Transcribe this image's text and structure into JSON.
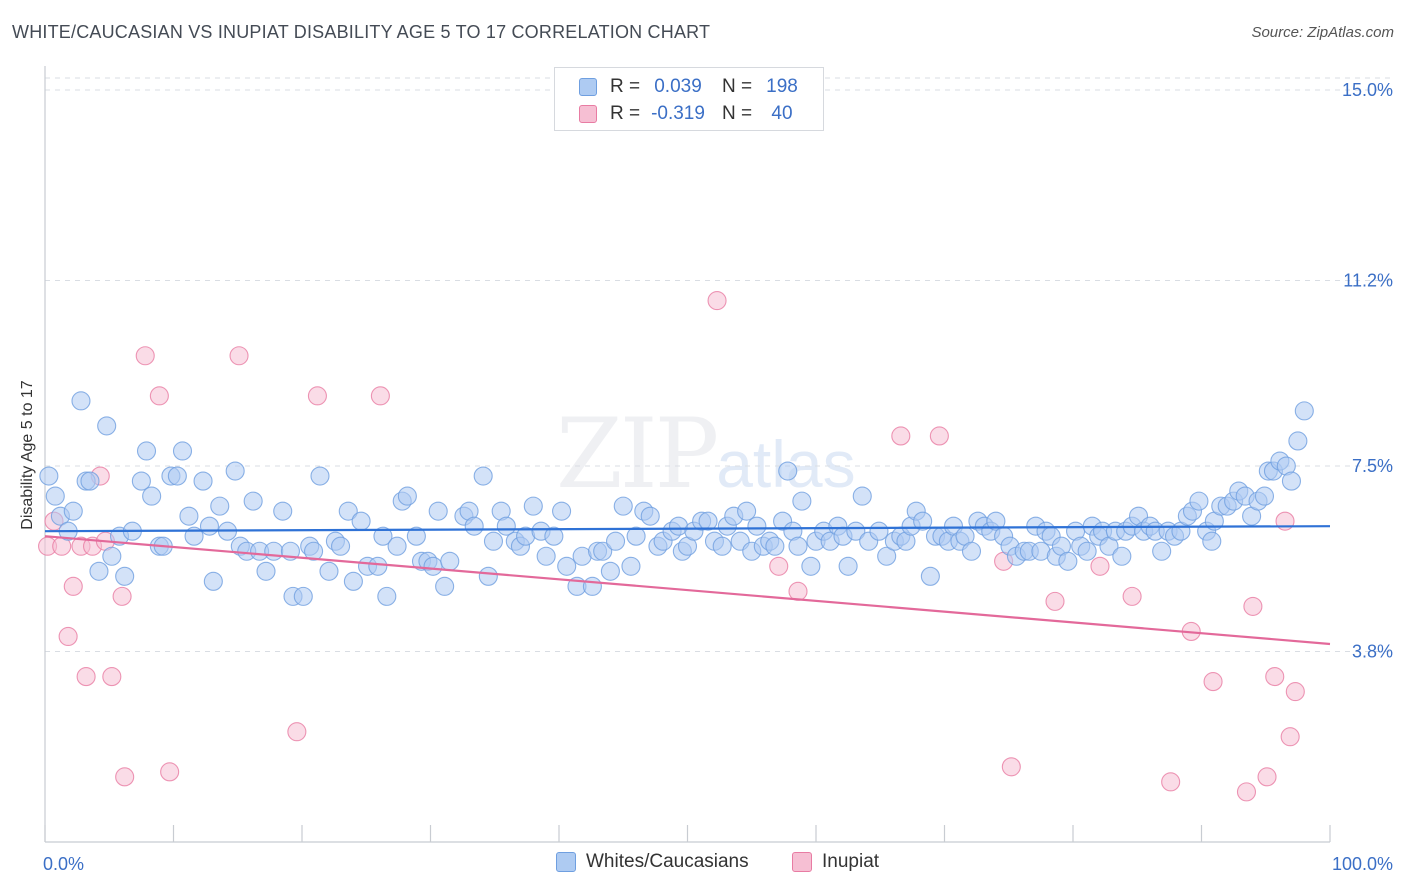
{
  "title": "WHITE/CAUCASIAN VS INUPIAT DISABILITY AGE 5 TO 17 CORRELATION CHART",
  "source": "Source: ZipAtlas.com",
  "watermark": {
    "zip": "ZIP",
    "atlas": "atlas"
  },
  "colors": {
    "blue": "#6f9fe0",
    "blue_fill": "#aecbf2",
    "pink": "#e87ca3",
    "pink_fill": "#f6bfd3",
    "blue_line": "#2f72d6",
    "pink_line": "#e3699a",
    "tick_text": "#3b6fc6",
    "grid": "#d9dde3"
  },
  "legend_top": {
    "rows": [
      {
        "r_label": "R =",
        "r_value": "0.039",
        "n_label": "N =",
        "n_value": "198"
      },
      {
        "r_label": "R =",
        "r_value": "-0.319",
        "n_label": "N =",
        "n_value": "40"
      }
    ]
  },
  "legend_bottom": [
    "Whites/Caucasians",
    "Inupiat"
  ],
  "chart_data": {
    "type": "scatter",
    "title": "WHITE/CAUCASIAN VS INUPIAT DISABILITY AGE 5 TO 17 CORRELATION CHART",
    "xlabel": "",
    "ylabel": "Disability Age 5 to 17",
    "xlim": [
      0,
      100
    ],
    "ylim": [
      0,
      15.4
    ],
    "x_tick_labels": [
      "0.0%",
      "100.0%"
    ],
    "y_ticks": [
      3.8,
      7.5,
      11.2,
      15.0
    ],
    "y_tick_labels": [
      "3.8%",
      "7.5%",
      "11.2%",
      "15.0%"
    ],
    "series": [
      {
        "name": "Whites/Caucasians",
        "r": 0.039,
        "n": 198,
        "trend": {
          "x": [
            0,
            100
          ],
          "y": [
            6.2,
            6.3
          ]
        },
        "points": [
          [
            0.3,
            7.3
          ],
          [
            0.8,
            6.9
          ],
          [
            1.2,
            6.5
          ],
          [
            1.8,
            6.2
          ],
          [
            2.2,
            6.6
          ],
          [
            2.8,
            8.8
          ],
          [
            3.2,
            7.2
          ],
          [
            3.5,
            7.2
          ],
          [
            4.2,
            5.4
          ],
          [
            4.8,
            8.3
          ],
          [
            5.2,
            5.7
          ],
          [
            5.8,
            6.1
          ],
          [
            6.2,
            5.3
          ],
          [
            6.8,
            6.2
          ],
          [
            7.5,
            7.2
          ],
          [
            7.9,
            7.8
          ],
          [
            8.3,
            6.9
          ],
          [
            8.9,
            5.9
          ],
          [
            9.2,
            5.9
          ],
          [
            9.8,
            7.3
          ],
          [
            10.3,
            7.3
          ],
          [
            10.7,
            7.8
          ],
          [
            11.2,
            6.5
          ],
          [
            11.6,
            6.1
          ],
          [
            12.3,
            7.2
          ],
          [
            12.8,
            6.3
          ],
          [
            13.1,
            5.2
          ],
          [
            13.6,
            6.7
          ],
          [
            14.2,
            6.2
          ],
          [
            14.8,
            7.4
          ],
          [
            15.2,
            5.9
          ],
          [
            15.7,
            5.8
          ],
          [
            16.2,
            6.8
          ],
          [
            16.7,
            5.8
          ],
          [
            17.2,
            5.4
          ],
          [
            17.8,
            5.8
          ],
          [
            18.5,
            6.6
          ],
          [
            19.1,
            5.8
          ],
          [
            19.3,
            4.9
          ],
          [
            20.1,
            4.9
          ],
          [
            20.6,
            5.9
          ],
          [
            20.9,
            5.8
          ],
          [
            21.4,
            7.3
          ],
          [
            22.1,
            5.4
          ],
          [
            22.6,
            6.0
          ],
          [
            23.0,
            5.9
          ],
          [
            23.6,
            6.6
          ],
          [
            24.0,
            5.2
          ],
          [
            24.6,
            6.4
          ],
          [
            25.1,
            5.5
          ],
          [
            25.9,
            5.5
          ],
          [
            26.6,
            4.9
          ],
          [
            26.3,
            6.1
          ],
          [
            27.4,
            5.9
          ],
          [
            27.8,
            6.8
          ],
          [
            28.2,
            6.9
          ],
          [
            28.9,
            6.1
          ],
          [
            29.3,
            5.6
          ],
          [
            29.8,
            5.6
          ],
          [
            30.2,
            5.5
          ],
          [
            30.6,
            6.6
          ],
          [
            31.1,
            5.1
          ],
          [
            31.5,
            5.6
          ],
          [
            32.6,
            6.5
          ],
          [
            33.0,
            6.6
          ],
          [
            33.4,
            6.3
          ],
          [
            34.1,
            7.3
          ],
          [
            34.5,
            5.3
          ],
          [
            34.9,
            6.0
          ],
          [
            35.5,
            6.6
          ],
          [
            35.9,
            6.3
          ],
          [
            36.6,
            6.0
          ],
          [
            37.0,
            5.9
          ],
          [
            37.4,
            6.1
          ],
          [
            38.0,
            6.7
          ],
          [
            38.6,
            6.2
          ],
          [
            39.0,
            5.7
          ],
          [
            39.6,
            6.1
          ],
          [
            40.2,
            6.6
          ],
          [
            40.6,
            5.5
          ],
          [
            41.4,
            5.1
          ],
          [
            41.8,
            5.7
          ],
          [
            42.6,
            5.1
          ],
          [
            43.0,
            5.8
          ],
          [
            43.4,
            5.8
          ],
          [
            44.0,
            5.4
          ],
          [
            44.4,
            6.0
          ],
          [
            45.0,
            6.7
          ],
          [
            45.6,
            5.5
          ],
          [
            46.0,
            6.1
          ],
          [
            46.6,
            6.6
          ],
          [
            47.1,
            6.5
          ],
          [
            47.7,
            5.9
          ],
          [
            48.1,
            6.0
          ],
          [
            48.8,
            6.2
          ],
          [
            49.3,
            6.3
          ],
          [
            49.6,
            5.8
          ],
          [
            50.0,
            5.9
          ],
          [
            50.5,
            6.2
          ],
          [
            51.1,
            6.4
          ],
          [
            51.6,
            6.4
          ],
          [
            52.1,
            6.0
          ],
          [
            52.7,
            5.9
          ],
          [
            53.1,
            6.3
          ],
          [
            53.6,
            6.5
          ],
          [
            54.1,
            6.0
          ],
          [
            54.6,
            6.6
          ],
          [
            55.0,
            5.8
          ],
          [
            55.4,
            6.3
          ],
          [
            55.9,
            5.9
          ],
          [
            56.4,
            6.0
          ],
          [
            56.8,
            5.9
          ],
          [
            57.4,
            6.4
          ],
          [
            57.8,
            7.4
          ],
          [
            58.2,
            6.2
          ],
          [
            58.6,
            5.9
          ],
          [
            58.9,
            6.8
          ],
          [
            59.6,
            5.5
          ],
          [
            60.0,
            6.0
          ],
          [
            60.6,
            6.2
          ],
          [
            61.1,
            6.0
          ],
          [
            61.7,
            6.3
          ],
          [
            62.1,
            6.1
          ],
          [
            62.5,
            5.5
          ],
          [
            63.1,
            6.2
          ],
          [
            63.6,
            6.9
          ],
          [
            64.1,
            6.0
          ],
          [
            64.9,
            6.2
          ],
          [
            65.5,
            5.7
          ],
          [
            66.1,
            6.0
          ],
          [
            66.6,
            6.1
          ],
          [
            67.0,
            6.0
          ],
          [
            67.4,
            6.3
          ],
          [
            67.8,
            6.6
          ],
          [
            68.3,
            6.4
          ],
          [
            68.9,
            5.3
          ],
          [
            69.3,
            6.1
          ],
          [
            69.8,
            6.1
          ],
          [
            70.3,
            6.0
          ],
          [
            70.7,
            6.3
          ],
          [
            71.2,
            6.0
          ],
          [
            71.6,
            6.1
          ],
          [
            72.1,
            5.8
          ],
          [
            72.6,
            6.4
          ],
          [
            73.1,
            6.3
          ],
          [
            73.6,
            6.2
          ],
          [
            74.0,
            6.4
          ],
          [
            74.6,
            6.1
          ],
          [
            75.1,
            5.9
          ],
          [
            75.6,
            5.7
          ],
          [
            76.2,
            5.8
          ],
          [
            76.6,
            5.8
          ],
          [
            77.1,
            6.3
          ],
          [
            77.5,
            5.8
          ],
          [
            77.9,
            6.2
          ],
          [
            78.3,
            6.1
          ],
          [
            78.7,
            5.7
          ],
          [
            79.1,
            5.9
          ],
          [
            79.6,
            5.6
          ],
          [
            80.2,
            6.2
          ],
          [
            80.6,
            5.9
          ],
          [
            81.1,
            5.8
          ],
          [
            81.5,
            6.3
          ],
          [
            82.0,
            6.1
          ],
          [
            82.3,
            6.2
          ],
          [
            82.8,
            5.9
          ],
          [
            83.3,
            6.2
          ],
          [
            83.8,
            5.7
          ],
          [
            84.1,
            6.2
          ],
          [
            84.6,
            6.3
          ],
          [
            85.1,
            6.5
          ],
          [
            85.5,
            6.2
          ],
          [
            86.0,
            6.3
          ],
          [
            86.4,
            6.2
          ],
          [
            86.9,
            5.8
          ],
          [
            87.4,
            6.2
          ],
          [
            87.9,
            6.1
          ],
          [
            88.4,
            6.2
          ],
          [
            88.9,
            6.5
          ],
          [
            89.3,
            6.6
          ],
          [
            89.8,
            6.8
          ],
          [
            90.4,
            6.2
          ],
          [
            90.8,
            6.0
          ],
          [
            91.0,
            6.4
          ],
          [
            91.5,
            6.7
          ],
          [
            92.0,
            6.7
          ],
          [
            92.5,
            6.8
          ],
          [
            92.9,
            7.0
          ],
          [
            93.4,
            6.9
          ],
          [
            93.9,
            6.5
          ],
          [
            94.4,
            6.8
          ],
          [
            94.9,
            6.9
          ],
          [
            95.2,
            7.4
          ],
          [
            95.6,
            7.4
          ],
          [
            96.1,
            7.6
          ],
          [
            96.6,
            7.5
          ],
          [
            97.0,
            7.2
          ],
          [
            97.5,
            8.0
          ],
          [
            98.0,
            8.6
          ]
        ]
      },
      {
        "name": "Inupiat",
        "r": -0.319,
        "n": 40,
        "trend": {
          "x": [
            0,
            100
          ],
          "y": [
            6.1,
            3.95
          ]
        },
        "points": [
          [
            0.2,
            5.9
          ],
          [
            0.7,
            6.4
          ],
          [
            1.3,
            5.9
          ],
          [
            1.8,
            4.1
          ],
          [
            2.2,
            5.1
          ],
          [
            2.8,
            5.9
          ],
          [
            3.2,
            3.3
          ],
          [
            3.7,
            5.9
          ],
          [
            4.3,
            7.3
          ],
          [
            4.7,
            6.0
          ],
          [
            5.2,
            3.3
          ],
          [
            6.0,
            4.9
          ],
          [
            6.2,
            1.3
          ],
          [
            7.8,
            9.7
          ],
          [
            8.9,
            8.9
          ],
          [
            9.7,
            1.4
          ],
          [
            15.1,
            9.7
          ],
          [
            19.6,
            2.2
          ],
          [
            21.2,
            8.9
          ],
          [
            26.1,
            8.9
          ],
          [
            52.3,
            10.8
          ],
          [
            57.1,
            5.5
          ],
          [
            58.6,
            5.0
          ],
          [
            66.6,
            8.1
          ],
          [
            69.6,
            8.1
          ],
          [
            74.6,
            5.6
          ],
          [
            75.2,
            1.5
          ],
          [
            78.6,
            4.8
          ],
          [
            82.1,
            5.5
          ],
          [
            84.6,
            4.9
          ],
          [
            87.6,
            1.2
          ],
          [
            89.2,
            4.2
          ],
          [
            90.9,
            3.2
          ],
          [
            93.5,
            1.0
          ],
          [
            94.0,
            4.7
          ],
          [
            95.1,
            1.3
          ],
          [
            95.7,
            3.3
          ],
          [
            96.5,
            6.4
          ],
          [
            96.9,
            2.1
          ],
          [
            97.3,
            3.0
          ]
        ]
      }
    ]
  }
}
